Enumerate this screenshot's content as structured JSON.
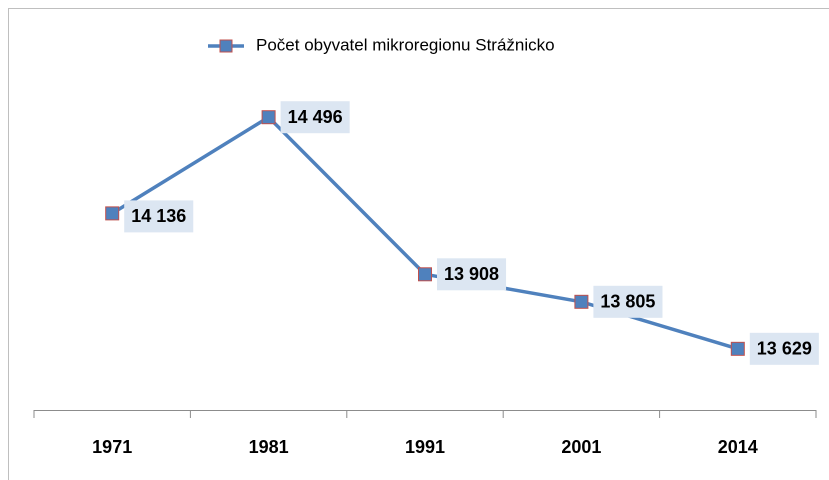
{
  "chart_data": {
    "type": "line",
    "categories": [
      "1971",
      "1981",
      "1991",
      "2001",
      "2014"
    ],
    "series": [
      {
        "name": "Počet obyvatel mikroregionu Strážnicko",
        "color": "#4f81bd",
        "marker_edge": "#c0504d",
        "values": [
          14136,
          14496,
          13908,
          13805,
          13629
        ],
        "value_labels": [
          "14 136",
          "14 496",
          "13 908",
          "13 805",
          "13 629"
        ]
      }
    ],
    "ylim": [
      13400,
      14800
    ],
    "legend": "top"
  }
}
